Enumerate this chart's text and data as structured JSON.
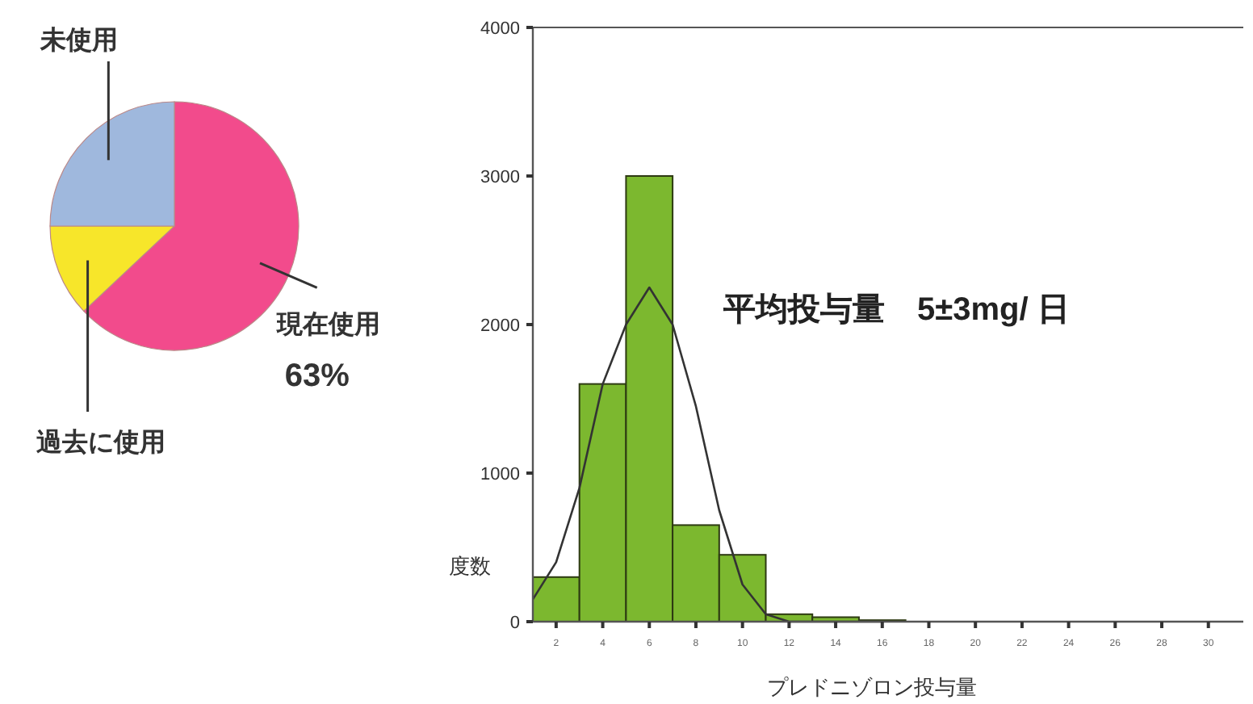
{
  "chart_data": [
    {
      "type": "pie",
      "categories": [
        "現在使用",
        "過去に使用",
        "未使用"
      ],
      "values": [
        63,
        12,
        25
      ],
      "colors": [
        "#f24b8c",
        "#f7e62a",
        "#9fb8dd"
      ],
      "value_labels": [
        "63%",
        null,
        null
      ]
    },
    {
      "type": "histogram",
      "xlabel": "プレドニゾロン投与量",
      "ylabel": "度数",
      "annotations": [
        "平均投与量　5±3mg/ 日"
      ],
      "bins": [
        1,
        3,
        5,
        7,
        9,
        11,
        13,
        15,
        17,
        19,
        21,
        23,
        25,
        27,
        29,
        31
      ],
      "series": [
        {
          "type": "histogram",
          "color": "#7cb82f",
          "values": [
            300,
            1600,
            3000,
            650,
            450,
            50,
            30,
            10,
            null,
            0,
            0,
            0,
            0,
            0,
            0
          ]
        },
        {
          "type": "line",
          "color": "#333333",
          "x": [
            1,
            2,
            3,
            4,
            5,
            6,
            7,
            8,
            9,
            10,
            11,
            12,
            14,
            16
          ],
          "values": [
            150,
            400,
            900,
            1600,
            2000,
            2250,
            2000,
            1450,
            750,
            250,
            50,
            0,
            0,
            0
          ]
        }
      ],
      "xlim": [
        1,
        31.5
      ],
      "ylim": [
        0,
        4000
      ],
      "yticks": [
        0,
        1000,
        2000,
        3000,
        4000
      ],
      "xticks": [
        2,
        4,
        6,
        8,
        10,
        12,
        14,
        16,
        18,
        20,
        22,
        24,
        26,
        28,
        30
      ],
      "marker": "none",
      "line_style": "solid"
    }
  ]
}
